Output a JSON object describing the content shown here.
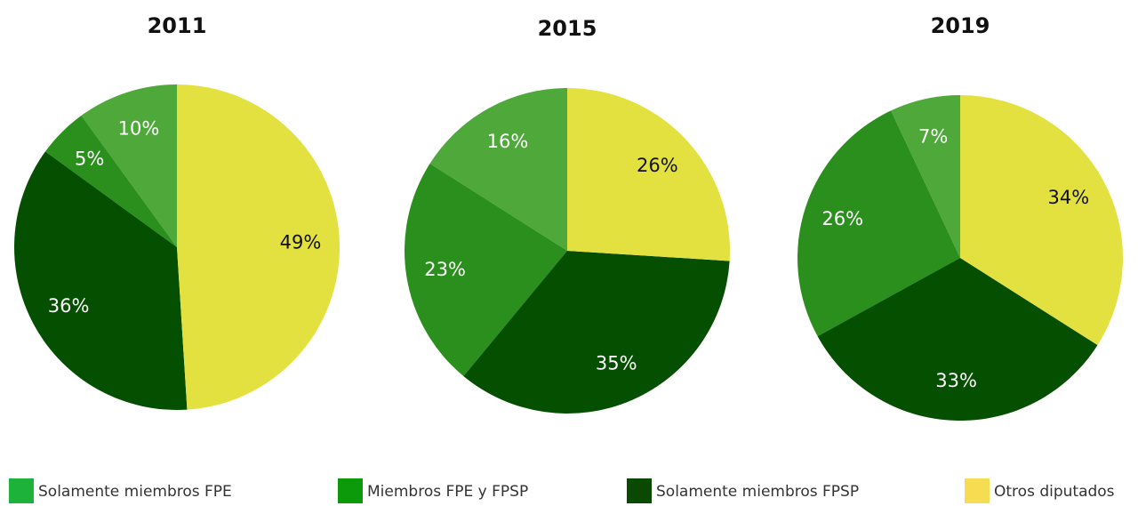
{
  "chart_data": [
    {
      "type": "pie",
      "title": "2011",
      "values": [
        10,
        5,
        36,
        49
      ],
      "value_labels": [
        "10%",
        "5%",
        "36%",
        "49%"
      ],
      "colors": [
        "#4ea83a",
        "#2a8f1c",
        "#055000",
        "#e3e140"
      ]
    },
    {
      "type": "pie",
      "title": "2015",
      "values": [
        16,
        23,
        35,
        26
      ],
      "value_labels": [
        "16%",
        "23%",
        "35%",
        "26%"
      ],
      "colors": [
        "#4ea83a",
        "#2a8f1c",
        "#055000",
        "#e3e140"
      ]
    },
    {
      "type": "pie",
      "title": "2019",
      "values": [
        7,
        26,
        33,
        34
      ],
      "value_labels": [
        "7%",
        "26%",
        "33%",
        "34%"
      ],
      "colors": [
        "#4ea83a",
        "#2a8f1c",
        "#055000",
        "#e3e140"
      ]
    }
  ],
  "legend": [
    {
      "name": "Solamente miembros FPE",
      "color": "#1db33a"
    },
    {
      "name": "Miembros FPE y FPSP",
      "color": "#0a9a0a"
    },
    {
      "name": "Solamente miembros FPSP",
      "color": "#0a4a00"
    },
    {
      "name": "Otros diputados",
      "color": "#f5dc50"
    }
  ]
}
